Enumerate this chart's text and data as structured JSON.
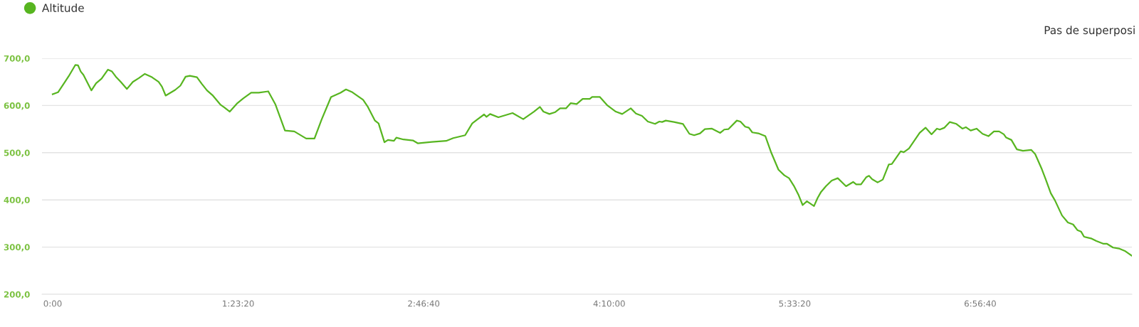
{
  "chart_data": {
    "type": "line",
    "x": [
      0,
      0.04,
      0.085,
      0.12,
      0.17,
      0.19,
      0.21,
      0.23,
      0.29,
      0.325,
      0.366,
      0.414,
      0.444,
      0.473,
      0.51,
      0.556,
      0.6,
      0.645,
      0.69,
      0.743,
      0.793,
      0.818,
      0.846,
      0.917,
      0.956,
      0.995,
      1.027,
      1.08,
      1.116,
      1.155,
      1.196,
      1.255,
      1.285,
      1.326,
      1.383,
      1.427,
      1.486,
      1.543,
      1.614,
      1.668,
      1.739,
      1.809,
      1.898,
      1.96,
      2.013,
      2.084,
      2.155,
      2.196,
      2.244,
      2.324,
      2.36,
      2.413,
      2.44,
      2.484,
      2.51,
      2.555,
      2.573,
      2.626,
      2.697,
      2.733,
      2.84,
      2.946,
      2.999,
      3.088,
      3.141,
      3.177,
      3.23,
      3.248,
      3.275,
      3.337,
      3.408,
      3.443,
      3.523,
      3.603,
      3.648,
      3.674,
      3.719,
      3.763,
      3.799,
      3.843,
      3.879,
      3.923,
      3.968,
      4.021,
      4.039,
      4.097,
      4.154,
      4.216,
      4.264,
      4.328,
      4.367,
      4.412,
      4.456,
      4.51,
      4.542,
      4.563,
      4.59,
      4.652,
      4.719,
      4.767,
      4.803,
      4.847,
      4.883,
      4.936,
      4.998,
      5.028,
      5.06,
      5.122,
      5.149,
      5.185,
      5.212,
      5.238,
      5.283,
      5.336,
      5.38,
      5.434,
      5.478,
      5.513,
      5.549,
      5.585,
      5.615,
      5.647,
      5.7,
      5.727,
      5.753,
      5.789,
      5.833,
      5.878,
      5.94,
      5.993,
      6.016,
      6.052,
      6.091,
      6.112,
      6.135,
      6.176,
      6.215,
      6.26,
      6.283,
      6.349,
      6.372,
      6.411,
      6.491,
      6.535,
      6.58,
      6.62,
      6.642,
      6.677,
      6.716,
      6.766,
      6.811,
      6.837,
      6.873,
      6.917,
      6.962,
      7.006,
      7.047,
      7.086,
      7.121,
      7.139,
      7.178,
      7.219,
      7.264,
      7.326,
      7.356,
      7.406,
      7.433,
      7.473,
      7.504,
      7.557,
      7.601,
      7.64,
      7.672,
      7.699,
      7.722,
      7.779,
      7.814,
      7.868,
      7.894,
      7.939,
      7.983,
      8.027,
      8.077
    ],
    "series": [
      {
        "name": "Altitude",
        "color": "#57b520",
        "values": [
          624,
          628,
          647,
          662,
          686,
          685,
          672,
          665,
          632,
          647,
          657,
          676,
          672,
          661,
          650,
          635,
          650,
          658,
          667,
          660,
          650,
          640,
          621,
          633,
          642,
          661,
          663,
          660,
          646,
          632,
          622,
          602,
          596,
          587,
          605,
          615,
          627,
          627,
          630,
          602,
          547,
          545,
          530,
          530,
          570,
          618,
          627,
          634,
          628,
          612,
          597,
          568,
          562,
          522,
          527,
          525,
          532,
          528,
          526,
          520,
          523,
          525,
          531,
          537,
          562,
          570,
          581,
          576,
          582,
          575,
          581,
          584,
          571,
          587,
          597,
          587,
          582,
          586,
          594,
          594,
          605,
          603,
          614,
          614,
          618,
          618,
          600,
          587,
          582,
          594,
          583,
          578,
          566,
          561,
          566,
          565,
          568,
          565,
          561,
          540,
          537,
          541,
          550,
          551,
          542,
          549,
          550,
          568,
          566,
          555,
          553,
          543,
          541,
          535,
          500,
          464,
          452,
          446,
          430,
          410,
          389,
          397,
          387,
          404,
          417,
          429,
          441,
          446,
          429,
          438,
          433,
          433,
          448,
          451,
          444,
          437,
          443,
          475,
          476,
          503,
          501,
          509,
          542,
          553,
          539,
          551,
          549,
          553,
          565,
          561,
          551,
          554,
          547,
          551,
          540,
          535,
          545,
          545,
          539,
          532,
          527,
          507,
          504,
          506,
          497,
          465,
          445,
          414,
          399,
          367,
          352,
          348,
          336,
          333,
          322,
          318,
          313,
          307,
          307,
          299,
          297,
          292,
          282
        ]
      }
    ],
    "xlim": [
      -0.08,
      8.08
    ],
    "xticks": [
      {
        "value": 0,
        "label": "0:00"
      },
      {
        "value": 1.3889,
        "label": "1:23:20"
      },
      {
        "value": 2.7778,
        "label": "2:46:40"
      },
      {
        "value": 4.1667,
        "label": "4:10:00"
      },
      {
        "value": 5.5556,
        "label": "5:33:20"
      },
      {
        "value": 6.9444,
        "label": "6:56:40"
      }
    ],
    "ylim": [
      200,
      700
    ],
    "yticks": [
      {
        "value": 200,
        "label": "200,0"
      },
      {
        "value": 300,
        "label": "300,0"
      },
      {
        "value": 400,
        "label": "400,0"
      },
      {
        "value": 500,
        "label": "500,0"
      },
      {
        "value": 600,
        "label": "600,0"
      },
      {
        "value": 700,
        "label": "700,0"
      }
    ],
    "grid": "y",
    "legend": "top left",
    "marker": "none",
    "line_style": "solid",
    "annotations": [
      "Pas de superposi"
    ]
  }
}
